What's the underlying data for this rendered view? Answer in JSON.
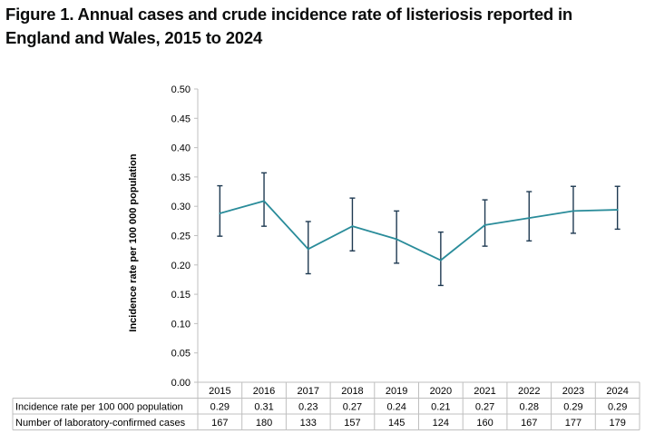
{
  "title": "Figure 1. Annual cases and crude incidence rate of listeriosis reported in England and Wales, 2015 to 2024",
  "chart_data": {
    "type": "line",
    "ylabel": "Incidence rate per 100 000 population",
    "ylim": [
      0,
      0.5
    ],
    "yticks": [
      "0.00",
      "0.05",
      "0.10",
      "0.15",
      "0.20",
      "0.25",
      "0.30",
      "0.35",
      "0.40",
      "0.45",
      "0.50"
    ],
    "categories": [
      "2015",
      "2016",
      "2017",
      "2018",
      "2019",
      "2020",
      "2021",
      "2022",
      "2023",
      "2024"
    ],
    "series": [
      {
        "name": "Incidence rate per 100 000 population",
        "values": [
          0.288,
          0.309,
          0.227,
          0.266,
          0.244,
          0.208,
          0.268,
          0.28,
          0.292,
          0.294
        ],
        "lower": [
          0.249,
          0.266,
          0.185,
          0.224,
          0.203,
          0.165,
          0.232,
          0.241,
          0.254,
          0.261
        ],
        "upper": [
          0.335,
          0.357,
          0.274,
          0.314,
          0.292,
          0.256,
          0.311,
          0.325,
          0.334,
          0.334
        ],
        "color": "#2a8c9a"
      }
    ],
    "error_bar_color": "#1f3a52",
    "grid": false,
    "table": {
      "rows": [
        {
          "label": "Incidence rate per 100 000 population",
          "values": [
            "0.29",
            "0.31",
            "0.23",
            "0.27",
            "0.24",
            "0.21",
            "0.27",
            "0.28",
            "0.29",
            "0.29"
          ]
        },
        {
          "label": "Number of laboratory-confirmed cases",
          "values": [
            "167",
            "180",
            "133",
            "157",
            "145",
            "124",
            "160",
            "167",
            "177",
            "179"
          ]
        }
      ]
    }
  }
}
